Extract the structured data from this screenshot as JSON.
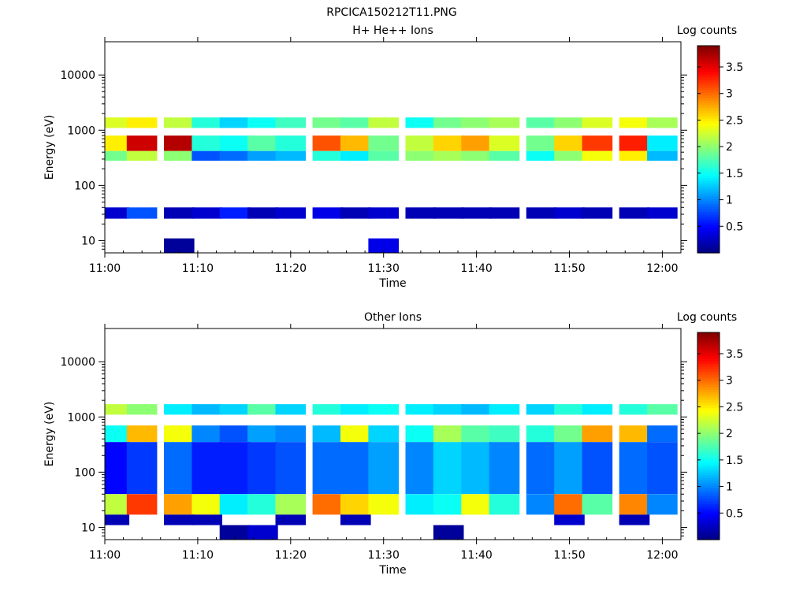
{
  "page_title": "RPCICA150212T11.PNG",
  "chart_data": [
    {
      "type": "heatmap",
      "title": "H+ He++ Ions",
      "xlabel": "Time",
      "ylabel": "Energy (eV)",
      "y_scale": "log",
      "xlim": [
        "11:00",
        "12:02"
      ],
      "ylim": [
        6,
        40000
      ],
      "x_ticks": [
        "11:00",
        "11:10",
        "11:20",
        "11:30",
        "11:40",
        "11:50",
        "12:00"
      ],
      "y_ticks": [
        "10",
        "100",
        "1000",
        "10000"
      ],
      "colorbar": {
        "label": "Log counts",
        "range": [
          0,
          3.9
        ],
        "ticks": [
          "0.5",
          "1",
          "1.5",
          "2",
          "2.5",
          "3",
          "3.5"
        ]
      },
      "time_bins": [
        "11:01",
        "11:04",
        "11:08",
        "11:11",
        "11:14",
        "11:17",
        "11:20",
        "11:24",
        "11:27",
        "11:30",
        "11:34",
        "11:37",
        "11:40",
        "11:43",
        "11:47",
        "11:50",
        "11:53",
        "11:57",
        "12:00"
      ],
      "bands": [
        {
          "energy": [
            1100,
            1700
          ],
          "values": [
            2.3,
            2.5,
            2.2,
            1.6,
            1.3,
            1.5,
            1.7,
            1.9,
            1.8,
            2.2,
            1.5,
            1.9,
            2.0,
            2.1,
            1.8,
            2.0,
            2.3,
            2.4,
            2.1
          ]
        },
        {
          "energy": [
            420,
            800
          ],
          "values": [
            2.5,
            3.6,
            3.7,
            1.6,
            1.5,
            1.8,
            1.6,
            3.1,
            2.7,
            1.9,
            2.2,
            2.6,
            2.8,
            2.3,
            1.9,
            2.6,
            3.2,
            3.3,
            1.4
          ]
        },
        {
          "energy": [
            280,
            420
          ],
          "values": [
            1.9,
            2.2,
            2.0,
            0.8,
            0.9,
            1.1,
            1.2,
            1.6,
            1.4,
            1.8,
            2.0,
            2.1,
            2.0,
            1.8,
            1.5,
            2.0,
            2.4,
            2.5,
            1.2
          ]
        },
        {
          "energy": [
            25,
            40
          ],
          "values": [
            0.3,
            0.8,
            0.2,
            0.3,
            0.6,
            0.2,
            0.3,
            0.4,
            0.2,
            0.3,
            0.2,
            0.2,
            0.2,
            0.2,
            0.2,
            0.3,
            0.2,
            0.2,
            0.3
          ]
        },
        {
          "energy": [
            6,
            11
          ],
          "values": [
            null,
            null,
            0.1,
            null,
            null,
            null,
            null,
            null,
            null,
            0.4,
            null,
            null,
            null,
            null,
            null,
            null,
            null,
            null,
            null
          ]
        }
      ]
    },
    {
      "type": "heatmap",
      "title": "Other Ions",
      "xlabel": "Time",
      "ylabel": "Energy (eV)",
      "y_scale": "log",
      "xlim": [
        "11:00",
        "12:02"
      ],
      "ylim": [
        6,
        40000
      ],
      "x_ticks": [
        "11:00",
        "11:10",
        "11:20",
        "11:30",
        "11:40",
        "11:50",
        "12:00"
      ],
      "y_ticks": [
        "10",
        "100",
        "1000",
        "10000"
      ],
      "colorbar": {
        "label": "Log counts",
        "range": [
          0,
          3.9
        ],
        "ticks": [
          "0.5",
          "1",
          "1.5",
          "2",
          "2.5",
          "3",
          "3.5"
        ]
      },
      "time_bins": [
        "11:01",
        "11:04",
        "11:08",
        "11:11",
        "11:14",
        "11:17",
        "11:20",
        "11:24",
        "11:27",
        "11:30",
        "11:34",
        "11:37",
        "11:40",
        "11:43",
        "11:47",
        "11:50",
        "11:53",
        "11:57",
        "12:00"
      ],
      "bands": [
        {
          "energy": [
            1100,
            1700
          ],
          "values": [
            2.2,
            2.0,
            1.4,
            1.2,
            1.3,
            1.8,
            1.3,
            1.6,
            1.4,
            1.5,
            1.4,
            1.3,
            1.2,
            1.4,
            1.3,
            1.6,
            1.4,
            1.6,
            1.8
          ]
        },
        {
          "energy": [
            350,
            700
          ],
          "values": [
            1.5,
            2.7,
            2.4,
            1.0,
            0.8,
            1.1,
            1.0,
            1.2,
            2.4,
            1.3,
            1.5,
            2.1,
            1.8,
            1.7,
            1.6,
            1.9,
            2.8,
            2.7,
            0.9
          ]
        },
        {
          "energy": [
            40,
            350
          ],
          "values": [
            0.5,
            0.7,
            0.9,
            0.6,
            0.6,
            0.7,
            0.8,
            0.9,
            0.9,
            1.1,
            1.0,
            1.3,
            1.2,
            1.0,
            0.9,
            1.1,
            0.8,
            0.9,
            0.8
          ]
        },
        {
          "energy": [
            17,
            40
          ],
          "values": [
            2.2,
            3.2,
            2.8,
            2.4,
            1.4,
            1.6,
            2.1,
            3.0,
            2.6,
            2.4,
            1.4,
            1.5,
            2.4,
            1.6,
            1.0,
            3.0,
            1.8,
            2.9,
            1.0
          ]
        },
        {
          "energy": [
            11,
            17
          ],
          "values": [
            0.2,
            null,
            0.2,
            0.2,
            null,
            null,
            0.2,
            null,
            0.2,
            null,
            null,
            null,
            null,
            null,
            null,
            0.3,
            null,
            0.2,
            null
          ]
        },
        {
          "energy": [
            6,
            11
          ],
          "values": [
            null,
            null,
            null,
            null,
            0.1,
            0.3,
            null,
            null,
            null,
            null,
            null,
            0.1,
            null,
            null,
            null,
            null,
            null,
            null,
            null
          ]
        }
      ]
    }
  ]
}
